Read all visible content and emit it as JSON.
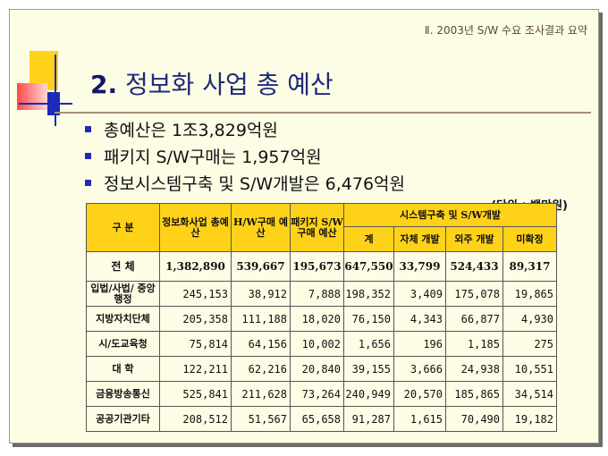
{
  "header_note": "Ⅱ. 2003년 S/W 수요 조사결과 요약",
  "title": {
    "number": "2.",
    "text": "정보화 사업 총 예산"
  },
  "bullets": [
    "총예산은 1조3,829억원",
    "패키지 S/W구매는 1,957억원",
    "정보시스템구축 및 S/W개발은 6,476억원"
  ],
  "unit_note": "(단위 : 백만원)",
  "table": {
    "headers": {
      "category": "구 분",
      "total_budget": "정보화사업 총예산",
      "hw": "H/W구매 예산",
      "pkg": "패키지 S/W구매 예산",
      "sys_group": "시스템구축 및 S/W개발",
      "sub": [
        "계",
        "자체 개발",
        "외주 개발",
        "미확정"
      ]
    },
    "rows": [
      {
        "label": "전  체",
        "values": [
          "1,382,890",
          "539,667",
          "195,673",
          "647,550",
          "33,799",
          "524,433",
          "89,317"
        ]
      },
      {
        "label": "입법/사법/ 중앙행정",
        "values": [
          "245,153",
          "38,912",
          "7,888",
          "198,352",
          "3,409",
          "175,078",
          "19,865"
        ]
      },
      {
        "label": "지방자치단체",
        "values": [
          "205,358",
          "111,188",
          "18,020",
          "76,150",
          "4,343",
          "66,877",
          "4,930"
        ]
      },
      {
        "label": "시/도교육청",
        "values": [
          "75,814",
          "64,156",
          "10,002",
          "1,656",
          "196",
          "1,185",
          "275"
        ]
      },
      {
        "label": "대  학",
        "values": [
          "122,211",
          "62,216",
          "20,840",
          "39,155",
          "3,666",
          "24,938",
          "10,551"
        ]
      },
      {
        "label": "금융방송통신",
        "values": [
          "525,841",
          "211,628",
          "73,264",
          "240,949",
          "20,570",
          "185,865",
          "34,514"
        ]
      },
      {
        "label": "공공기관기타",
        "values": [
          "208,512",
          "51,567",
          "65,658",
          "91,287",
          "1,615",
          "70,490",
          "19,182"
        ]
      }
    ]
  }
}
